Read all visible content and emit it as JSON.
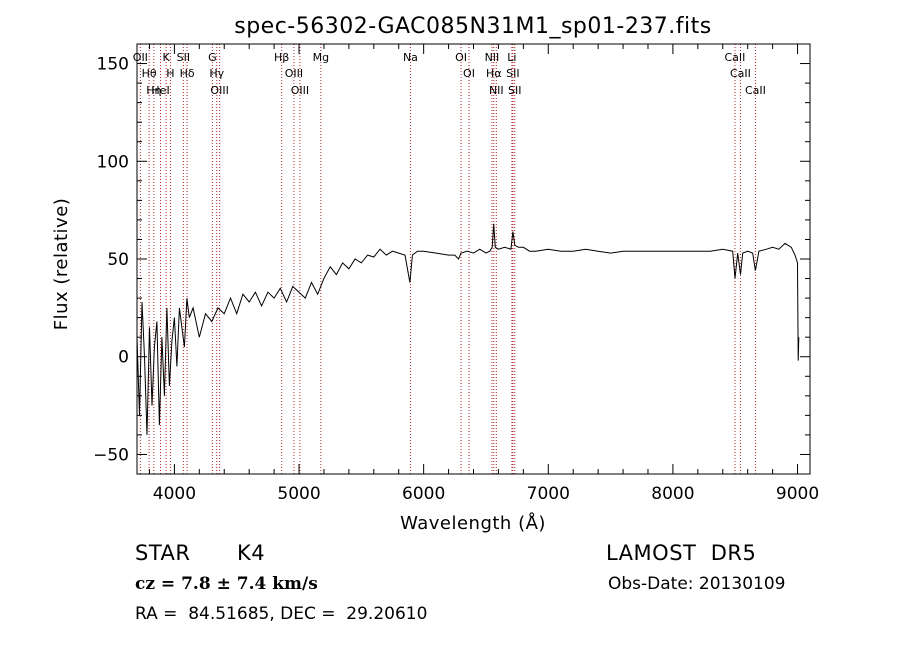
{
  "chart_data": {
    "type": "line",
    "title": "spec-56302-GAC085N31M1_sp01-237.fits",
    "xlabel": "Wavelength (Å)",
    "ylabel": "Flux (relative)",
    "xlim": [
      3700,
      9100
    ],
    "ylim": [
      -60,
      160
    ],
    "xticks": [
      4000,
      5000,
      6000,
      7000,
      8000,
      9000
    ],
    "yticks": [
      -50,
      0,
      50,
      100,
      150
    ],
    "x_tick_labels": [
      "4000",
      "5000",
      "6000",
      "7000",
      "8000",
      "9000"
    ],
    "y_tick_labels": [
      "−50",
      "0",
      "50",
      "100",
      "150"
    ],
    "grid": false,
    "series": [
      {
        "x": [
          3700,
          3720,
          3740,
          3760,
          3780,
          3800,
          3820,
          3840,
          3860,
          3880,
          3900,
          3920,
          3940,
          3960,
          3980,
          4000,
          4020,
          4040,
          4060,
          4080,
          4100,
          4120,
          4150,
          4200,
          4250,
          4300,
          4350,
          4400,
          4450,
          4500,
          4550,
          4600,
          4650,
          4700,
          4750,
          4800,
          4850,
          4900,
          4950,
          5000,
          5050,
          5100,
          5150,
          5200,
          5250,
          5300,
          5350,
          5400,
          5450,
          5500,
          5550,
          5600,
          5650,
          5700,
          5750,
          5800,
          5850,
          5890,
          5910,
          5950,
          6000,
          6100,
          6200,
          6250,
          6280,
          6300,
          6350,
          6400,
          6450,
          6500,
          6530,
          6550,
          6562,
          6575,
          6600,
          6650,
          6700,
          6716,
          6731,
          6760,
          6800,
          6850,
          6900,
          7000,
          7100,
          7200,
          7300,
          7400,
          7500,
          7600,
          7700,
          7800,
          7900,
          8000,
          8100,
          8200,
          8300,
          8400,
          8480,
          8498,
          8520,
          8542,
          8560,
          8600,
          8640,
          8662,
          8690,
          8750,
          8800,
          8850,
          8900,
          8950,
          8980,
          9000,
          9005,
          9010
        ],
        "y": [
          10,
          -30,
          28,
          0,
          -40,
          15,
          -25,
          5,
          18,
          -35,
          10,
          -20,
          25,
          -15,
          8,
          20,
          -5,
          25,
          15,
          5,
          30,
          20,
          25,
          10,
          22,
          18,
          25,
          22,
          30,
          22,
          32,
          28,
          33,
          26,
          33,
          30,
          35,
          28,
          36,
          33,
          30,
          38,
          32,
          40,
          46,
          42,
          48,
          45,
          50,
          48,
          52,
          51,
          55,
          52,
          54,
          53,
          52,
          38,
          52,
          54,
          54,
          53,
          52,
          52,
          50,
          53,
          54,
          53,
          55,
          53,
          54,
          56,
          68,
          56,
          55,
          56,
          55,
          64,
          57,
          56,
          56,
          54,
          54,
          55,
          54,
          54,
          55,
          54,
          53,
          54,
          54,
          54,
          54,
          54,
          54,
          54,
          54,
          55,
          54,
          40,
          53,
          42,
          53,
          54,
          53,
          44,
          54,
          55,
          56,
          55,
          58,
          56,
          52,
          48,
          -2,
          10
        ]
      }
    ],
    "lines": [
      {
        "label": "OII",
        "x": 3727
      },
      {
        "label": "Hθ",
        "x": 3797
      },
      {
        "label": "Hη",
        "x": 3835
      },
      {
        "label": "HeI",
        "x": 3889
      },
      {
        "label": "K",
        "x": 3934
      },
      {
        "label": "H",
        "x": 3968
      },
      {
        "label": "SII",
        "x": 4072
      },
      {
        "label": "Hδ",
        "x": 4102
      },
      {
        "label": "G",
        "x": 4305
      },
      {
        "label": "Hγ",
        "x": 4340
      },
      {
        "label": "OIII",
        "x": 4363
      },
      {
        "label": "Hβ",
        "x": 4861
      },
      {
        "label": "OIII",
        "x": 4959
      },
      {
        "label": "OIII",
        "x": 5007
      },
      {
        "label": "Mg",
        "x": 5175
      },
      {
        "label": "Na",
        "x": 5894
      },
      {
        "label": "OI",
        "x": 6300
      },
      {
        "label": "OI",
        "x": 6364
      },
      {
        "label": "NII",
        "x": 6548
      },
      {
        "label": "Hα",
        "x": 6563
      },
      {
        "label": "NII",
        "x": 6583
      },
      {
        "label": "Li",
        "x": 6708
      },
      {
        "label": "SII",
        "x": 6716
      },
      {
        "label": "SII",
        "x": 6731
      },
      {
        "label": "CaII",
        "x": 8498
      },
      {
        "label": "CaII",
        "x": 8542
      },
      {
        "label": "CaII",
        "x": 8662
      }
    ]
  },
  "info": {
    "object_class": "STAR",
    "subclass": "K4",
    "cz": "cz = 7.8 ± 7.4 km/s",
    "coords": "RA =  84.51685, DEC =  29.20610",
    "survey": "LAMOST  DR5",
    "obs_date": "Obs-Date: 20130109"
  }
}
